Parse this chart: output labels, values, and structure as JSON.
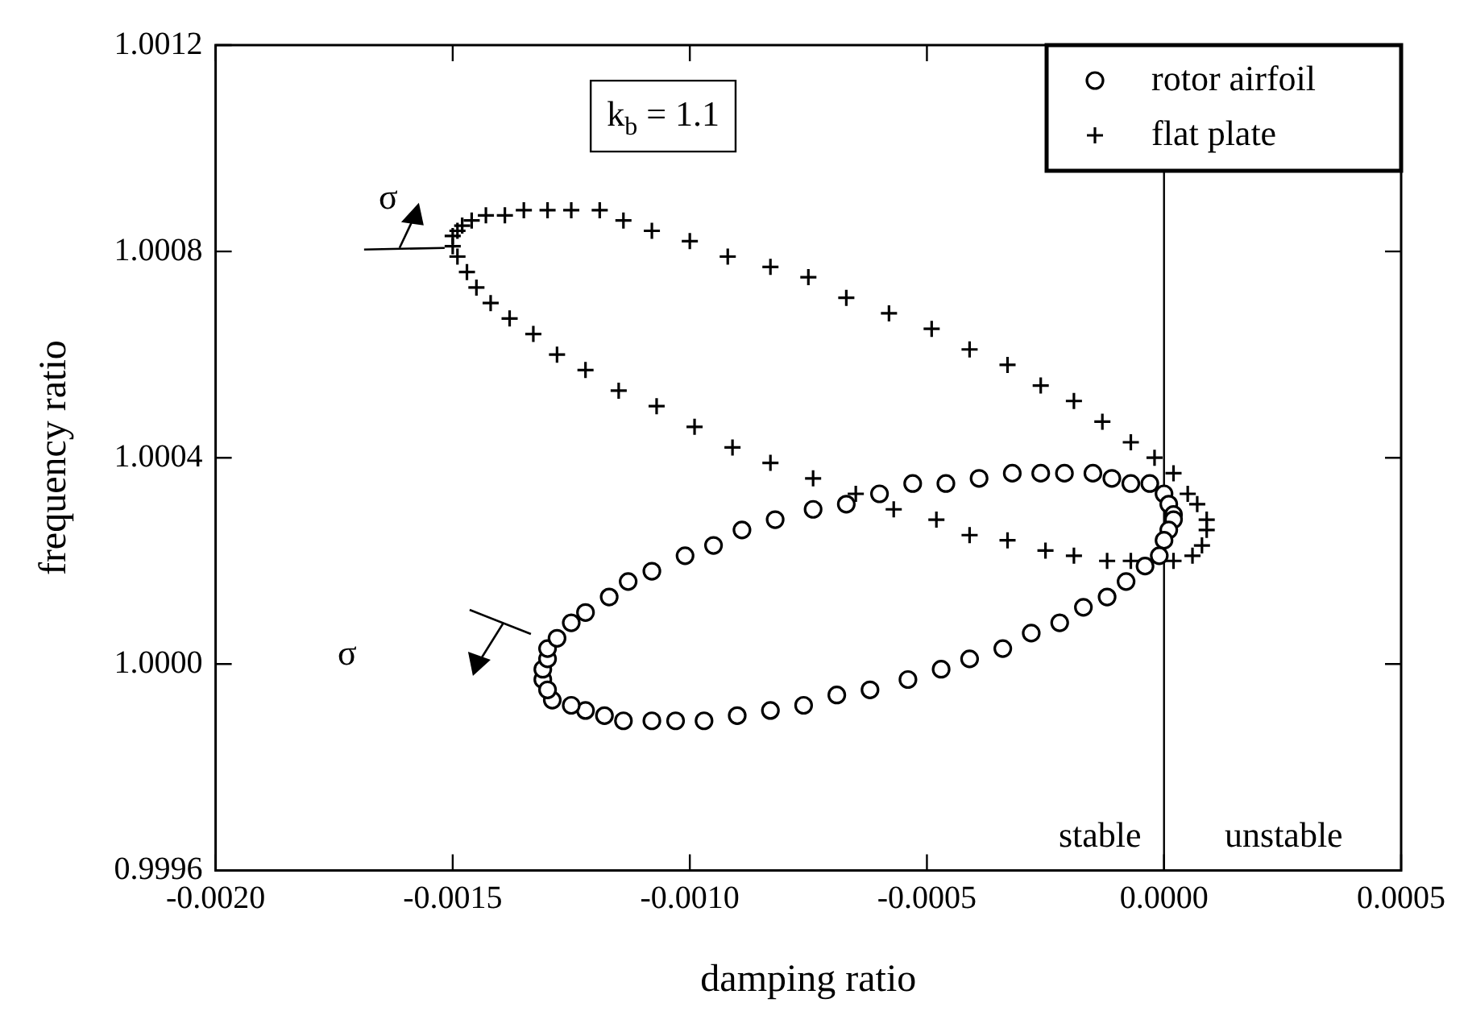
{
  "chart_data": {
    "type": "scatter",
    "xlabel": "damping ratio",
    "ylabel": "frequency ratio",
    "xlim": [
      -0.002,
      0.0005
    ],
    "ylim": [
      0.9996,
      1.0012
    ],
    "xticks": [
      {
        "value": -0.002,
        "label": "-0.0020"
      },
      {
        "value": -0.0015,
        "label": "-0.0015"
      },
      {
        "value": -0.001,
        "label": "-0.0010"
      },
      {
        "value": -0.0005,
        "label": "-0.0005"
      },
      {
        "value": 0,
        "label": "0.0000"
      },
      {
        "value": 0.0005,
        "label": "0.0005"
      }
    ],
    "yticks": [
      {
        "value": 0.9996,
        "label": "0.9996"
      },
      {
        "value": 1.0,
        "label": "1.0000"
      },
      {
        "value": 1.0004,
        "label": "1.0004"
      },
      {
        "value": 1.0008,
        "label": "1.0008"
      },
      {
        "value": 1.0012,
        "label": "1.0012"
      }
    ],
    "grid": false,
    "legend": "top right",
    "ref_lines": [
      {
        "axis": "x",
        "value": 0,
        "color": "#000000",
        "line_style": "solid"
      }
    ],
    "annotations": [
      "k$_{b}$ = 1.1",
      {
        "text": "σ",
        "x": -0.0015,
        "y": 1.00081
      },
      "σ",
      "stable",
      "unstable"
    ],
    "series": [
      {
        "name": "rotor airfoil",
        "color": "#000000",
        "marker": "circle",
        "x": [
          -0.00131,
          -0.00131,
          -0.0013,
          -0.0013,
          -0.00128,
          -0.00125,
          -0.00122,
          -0.00117,
          -0.00113,
          -0.00108,
          -0.00101,
          -0.00095,
          -0.00089,
          -0.00082,
          -0.00074,
          -0.00067,
          -0.0006,
          -0.00053,
          -0.00046,
          -0.00039,
          -0.00032,
          -0.00026,
          -0.00021,
          -0.00015,
          -0.00011,
          -7e-05,
          -3e-05,
          0.0,
          1e-05,
          2e-05,
          2e-05,
          1e-05,
          0.0,
          -1e-05,
          -4e-05,
          -8e-05,
          -0.00012,
          -0.00017,
          -0.00022,
          -0.00028,
          -0.00034,
          -0.00041,
          -0.00047,
          -0.00054,
          -0.00062,
          -0.00069,
          -0.00076,
          -0.00083,
          -0.0009,
          -0.00097,
          -0.00103,
          -0.00108,
          -0.00114,
          -0.00118,
          -0.00122,
          -0.00125,
          -0.00129,
          -0.0013
        ],
        "values": [
          0.99997,
          0.99999,
          1.00001,
          1.00003,
          1.00005,
          1.00008,
          1.0001,
          1.00013,
          1.00016,
          1.00018,
          1.00021,
          1.00023,
          1.00026,
          1.00028,
          1.0003,
          1.00031,
          1.00033,
          1.00035,
          1.00035,
          1.00036,
          1.00037,
          1.00037,
          1.00037,
          1.00037,
          1.00036,
          1.00035,
          1.00035,
          1.00033,
          1.00031,
          1.00029,
          1.00028,
          1.00026,
          1.00024,
          1.00021,
          1.00019,
          1.00016,
          1.00013,
          1.00011,
          1.00008,
          1.00006,
          1.00003,
          1.00001,
          0.99999,
          0.99997,
          0.99995,
          0.99994,
          0.99992,
          0.99991,
          0.9999,
          0.99989,
          0.99989,
          0.99989,
          0.99989,
          0.9999,
          0.99991,
          0.99992,
          0.99993,
          0.99995
        ]
      },
      {
        "name": "flat plate",
        "color": "#000000",
        "marker": "cross",
        "x": [
          -0.0015,
          -0.00149,
          -0.00148,
          -0.00146,
          -0.00143,
          -0.00139,
          -0.00135,
          -0.0013,
          -0.00125,
          -0.00119,
          -0.00114,
          -0.00108,
          -0.001,
          -0.00092,
          -0.00083,
          -0.00075,
          -0.00067,
          -0.00058,
          -0.00049,
          -0.00041,
          -0.00033,
          -0.00026,
          -0.00019,
          -0.00013,
          -7e-05,
          -2e-05,
          2e-05,
          5e-05,
          7e-05,
          9e-05,
          9e-05,
          8e-05,
          6e-05,
          2e-05,
          -7e-05,
          -0.00012,
          -0.00019,
          -0.00025,
          -0.00033,
          -0.00041,
          -0.00048,
          -0.00057,
          -0.00065,
          -0.00074,
          -0.00083,
          -0.00091,
          -0.00099,
          -0.00107,
          -0.00115,
          -0.00122,
          -0.00128,
          -0.00133,
          -0.00138,
          -0.00142,
          -0.00145,
          -0.00147,
          -0.00149,
          -0.0015
        ],
        "values": [
          1.00083,
          1.00084,
          1.00085,
          1.00086,
          1.00087,
          1.00087,
          1.00088,
          1.00088,
          1.00088,
          1.00088,
          1.00086,
          1.00084,
          1.00082,
          1.00079,
          1.00077,
          1.00075,
          1.00071,
          1.00068,
          1.00065,
          1.00061,
          1.00058,
          1.00054,
          1.00051,
          1.00047,
          1.00043,
          1.0004,
          1.00037,
          1.00033,
          1.00031,
          1.00028,
          1.00026,
          1.00023,
          1.00021,
          1.0002,
          1.0002,
          1.0002,
          1.00021,
          1.00022,
          1.00024,
          1.00025,
          1.00028,
          1.0003,
          1.00033,
          1.00036,
          1.00039,
          1.00042,
          1.00046,
          1.0005,
          1.00053,
          1.00057,
          1.0006,
          1.00064,
          1.00067,
          1.0007,
          1.00073,
          1.00076,
          1.00079,
          1.00081
        ]
      }
    ]
  }
}
